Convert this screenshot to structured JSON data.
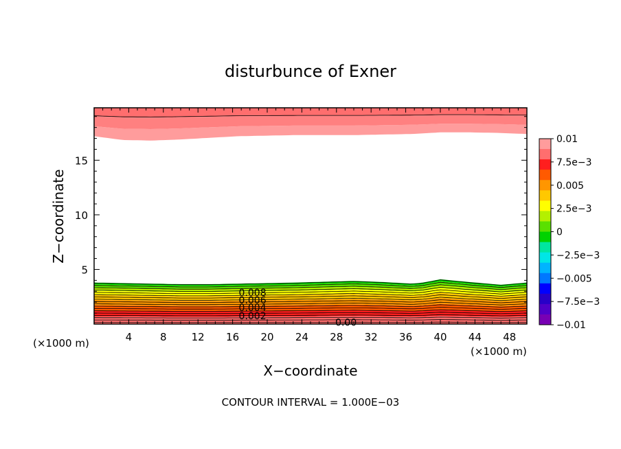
{
  "chart_data": {
    "type": "contour",
    "title": "disturbunce of Exner",
    "xlabel": "X−coordinate",
    "ylabel": "Z−coordinate",
    "x_unit": "(×1000 m)",
    "x_unit_right": "(×1000 m)",
    "xlim": [
      0,
      50
    ],
    "ylim": [
      0,
      19.8
    ],
    "x_ticks": [
      4,
      8,
      12,
      16,
      20,
      24,
      28,
      32,
      36,
      40,
      44,
      48
    ],
    "y_ticks": [
      5,
      10,
      15
    ],
    "contour_interval_text": "CONTOUR INTERVAL = 1.000E−03",
    "contour_labels": [
      {
        "text": "0.008",
        "x": 18.3,
        "z": 2.9
      },
      {
        "text": "0.006",
        "x": 18.3,
        "z": 2.2
      },
      {
        "text": "0.004",
        "x": 18.3,
        "z": 1.5
      },
      {
        "text": "0.002",
        "x": 18.3,
        "z": 0.75
      },
      {
        "text": "0.00",
        "x": 29.1,
        "z": 0.15
      }
    ],
    "colorbar": {
      "labels": [
        "0.01",
        "7.5e−3",
        "0.005",
        "2.5e−3",
        "0",
        "−2.5e−3",
        "−0.005",
        "−7.5e−3",
        "−0.01"
      ],
      "colors": [
        "#ff9c9c",
        "#ff6e6e",
        "#ff1e1e",
        "#ff5a00",
        "#ff9600",
        "#ffc800",
        "#ffff00",
        "#b4f000",
        "#5ae000",
        "#00d200",
        "#00e6a0",
        "#00e6e6",
        "#00b4ff",
        "#0078ff",
        "#0000ff",
        "#2800c8",
        "#5000c8",
        "#7800b4"
      ],
      "min": -0.01,
      "max": 0.01
    },
    "lower_layer": {
      "top_shaded_z": [
        3.8,
        3.75,
        3.7,
        3.65,
        3.65,
        3.7,
        3.75,
        3.8,
        3.95,
        3.85,
        3.7,
        3.8,
        4.1,
        3.85,
        3.6,
        3.8
      ],
      "x": [
        0,
        3.3,
        6.7,
        10,
        13.3,
        16.7,
        20,
        23.3,
        30,
        33.3,
        36.7,
        38,
        40,
        43.3,
        47,
        50
      ]
    },
    "upper_layer": {
      "bottom_shaded_z": [
        17.2,
        16.85,
        16.8,
        16.9,
        17.05,
        17.2,
        17.25,
        17.3,
        17.3,
        17.3,
        17.35,
        17.4,
        17.55,
        17.55,
        17.5,
        17.4
      ],
      "x": [
        0,
        3.3,
        6.7,
        10,
        13.3,
        16.7,
        20,
        23.3,
        26.7,
        30,
        33.3,
        36.7,
        40,
        43.3,
        46.7,
        50
      ]
    }
  }
}
